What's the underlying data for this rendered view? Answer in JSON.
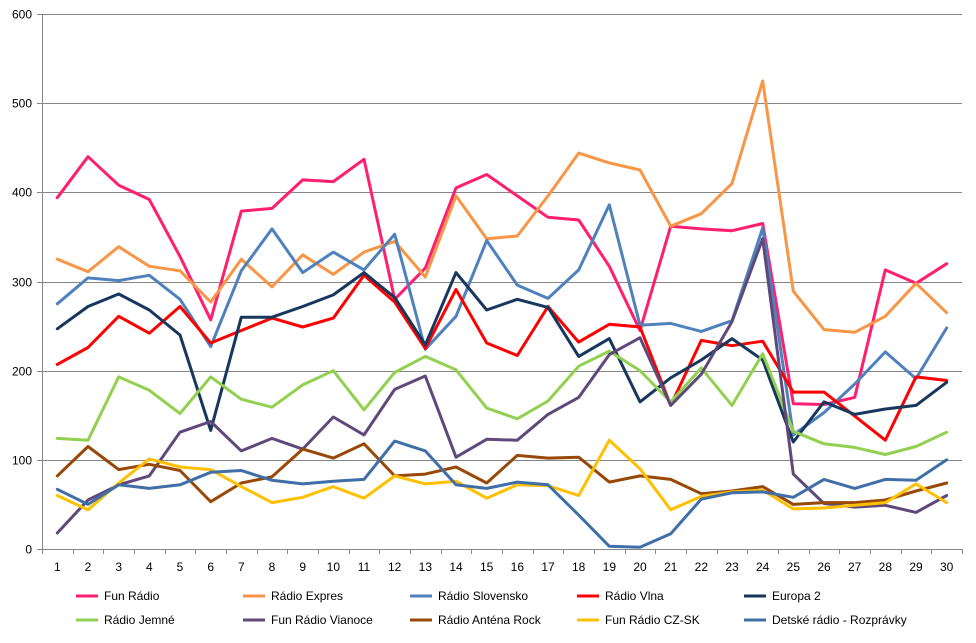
{
  "chart_data": {
    "type": "line",
    "title": "",
    "xlabel": "",
    "ylabel": "",
    "ylim": [
      0,
      600
    ],
    "yticks": [
      0,
      100,
      200,
      300,
      400,
      500,
      600
    ],
    "grid": "horizontal",
    "legend_position": "bottom",
    "x": [
      1,
      2,
      3,
      4,
      5,
      6,
      7,
      8,
      9,
      10,
      11,
      12,
      13,
      14,
      15,
      16,
      17,
      18,
      19,
      20,
      21,
      22,
      23,
      24,
      25,
      26,
      27,
      28,
      29,
      30
    ],
    "series": [
      {
        "name": "Fun Rádio",
        "color": "#ff1f6e",
        "values": [
          394,
          440,
          408,
          392,
          328,
          257,
          379,
          382,
          414,
          412,
          437,
          280,
          315,
          405,
          420,
          396,
          372,
          369,
          317,
          245,
          362,
          359,
          357,
          365,
          163,
          162,
          170,
          313,
          298,
          320
        ]
      },
      {
        "name": "Rádio Expres",
        "color": "#f79646",
        "values": [
          325,
          311,
          339,
          317,
          312,
          277,
          325,
          294,
          330,
          308,
          333,
          345,
          305,
          396,
          348,
          351,
          396,
          444,
          433,
          425,
          362,
          376,
          410,
          525,
          289,
          246,
          243,
          261,
          298,
          265
        ]
      },
      {
        "name": "Rádio Slovensko",
        "color": "#4f81bd",
        "values": [
          275,
          304,
          301,
          307,
          280,
          227,
          312,
          359,
          310,
          333,
          313,
          353,
          224,
          261,
          346,
          296,
          281,
          313,
          386,
          251,
          253,
          244,
          256,
          360,
          128,
          153,
          185,
          221,
          191,
          248
        ]
      },
      {
        "name": "Rádio Vlna",
        "color": "#ff0000",
        "values": [
          207,
          226,
          261,
          242,
          272,
          231,
          245,
          259,
          249,
          259,
          307,
          277,
          225,
          291,
          231,
          217,
          272,
          232,
          252,
          249,
          161,
          234,
          228,
          233,
          176,
          176,
          149,
          122,
          193,
          189
        ]
      },
      {
        "name": "Europa 2",
        "color": "#17375e",
        "values": [
          247,
          272,
          286,
          268,
          240,
          133,
          260,
          260,
          272,
          285,
          310,
          282,
          229,
          310,
          268,
          280,
          271,
          216,
          236,
          165,
          192,
          212,
          236,
          212,
          120,
          165,
          151,
          157,
          161,
          187
        ]
      },
      {
        "name": "Rádio Jemné",
        "color": "#92d050",
        "values": [
          124,
          122,
          193,
          178,
          152,
          193,
          168,
          159,
          184,
          200,
          156,
          198,
          216,
          201,
          158,
          146,
          166,
          205,
          222,
          200,
          165,
          203,
          161,
          219,
          132,
          118,
          114,
          106,
          115,
          131
        ]
      },
      {
        "name": "Fun Rádio Vianoce",
        "color": "#5f497a",
        "values": [
          18,
          55,
          72,
          82,
          131,
          143,
          110,
          124,
          112,
          148,
          128,
          179,
          194,
          103,
          123,
          122,
          151,
          170,
          218,
          237,
          161,
          196,
          255,
          348,
          84,
          51,
          47,
          49,
          41,
          60
        ]
      },
      {
        "name": "Rádio Anténa Rock",
        "color": "#984807",
        "values": [
          82,
          115,
          89,
          95,
          88,
          53,
          74,
          81,
          112,
          102,
          118,
          82,
          84,
          92,
          74,
          105,
          102,
          103,
          75,
          82,
          78,
          62,
          65,
          70,
          50,
          52,
          52,
          55,
          65,
          74
        ]
      },
      {
        "name": "Fun Rádio CZ-SK",
        "color": "#ffc000",
        "values": [
          60,
          44,
          74,
          101,
          92,
          89,
          70,
          52,
          58,
          70,
          57,
          82,
          73,
          76,
          57,
          72,
          71,
          60,
          122,
          90,
          44,
          59,
          64,
          66,
          45,
          46,
          49,
          52,
          73,
          52
        ]
      },
      {
        "name": "Detské rádio - Rozprávky",
        "color": "#3f6fa6",
        "values": [
          67,
          50,
          72,
          68,
          72,
          86,
          88,
          77,
          73,
          76,
          78,
          121,
          110,
          72,
          68,
          75,
          72,
          38,
          3,
          2,
          17,
          56,
          63,
          64,
          58,
          78,
          68,
          78,
          77,
          100
        ]
      }
    ]
  }
}
